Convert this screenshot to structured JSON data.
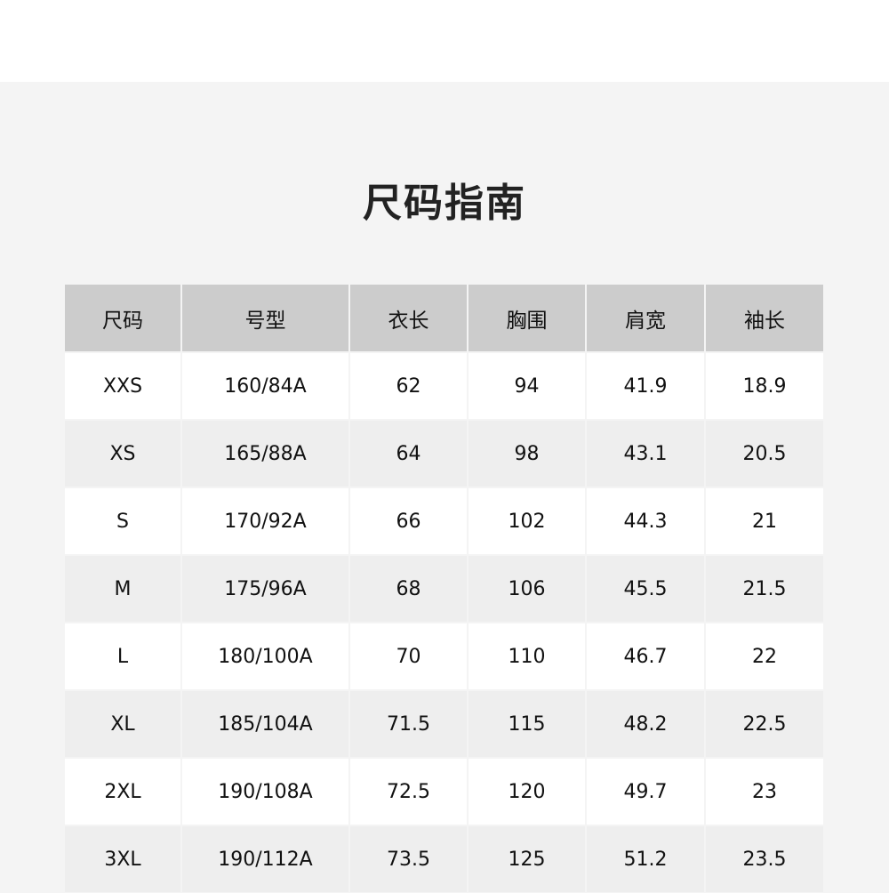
{
  "title": "尺码指南",
  "table": {
    "headers": [
      "尺码",
      "号型",
      "衣长",
      "胸围",
      "肩宽",
      "袖长"
    ],
    "rows": [
      [
        "XXS",
        "160/84A",
        "62",
        "94",
        "41.9",
        "18.9"
      ],
      [
        "XS",
        "165/88A",
        "64",
        "98",
        "43.1",
        "20.5"
      ],
      [
        "S",
        "170/92A",
        "66",
        "102",
        "44.3",
        "21"
      ],
      [
        "M",
        "175/96A",
        "68",
        "106",
        "45.5",
        "21.5"
      ],
      [
        "L",
        "180/100A",
        "70",
        "110",
        "46.7",
        "22"
      ],
      [
        "XL",
        "185/104A",
        "71.5",
        "115",
        "48.2",
        "22.5"
      ],
      [
        "2XL",
        "190/108A",
        "72.5",
        "120",
        "49.7",
        "23"
      ],
      [
        "3XL",
        "190/112A",
        "73.5",
        "125",
        "51.2",
        "23.5"
      ]
    ]
  },
  "colors": {
    "header_bg": "#cccccc",
    "row_alt_bg": "#eeeeee",
    "page_bg": "#f4f4f4"
  }
}
